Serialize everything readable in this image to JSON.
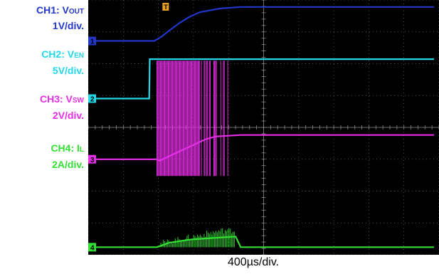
{
  "chart_data": {
    "type": "line",
    "title": "",
    "x_scale": "400µs/div.",
    "channels": [
      {
        "name": "CH1: VOUT",
        "label_main": "CH1: V",
        "label_sub": "OUT",
        "scale": "1V/div.",
        "color": "#2236c8",
        "marker": "1",
        "x": [
          0,
          1.3,
          1.45,
          1.6,
          1.8,
          2.0,
          2.2,
          2.6,
          3.0,
          4.0,
          5.0,
          6.8
        ],
        "y": [
          2.85,
          2.85,
          3.0,
          3.2,
          3.45,
          3.65,
          3.8,
          3.92,
          3.97,
          3.97,
          3.97,
          3.97
        ]
      },
      {
        "name": "CH2: VEN",
        "label_main": "CH2: V",
        "label_sub": "EN",
        "scale": "5V/div.",
        "color": "#22d8e8",
        "marker": "2",
        "x": [
          0,
          1.2,
          1.21,
          6.8
        ],
        "y": [
          0.95,
          0.95,
          2.25,
          2.25
        ]
      },
      {
        "name": "CH3: VSW",
        "label_main": "CH3: V",
        "label_sub": "SW",
        "scale": "2V/div.",
        "color": "#e62ee6",
        "marker": "3",
        "x": [
          0,
          1.35,
          1.4,
          2.3,
          2.5,
          3.0,
          3.2,
          6.8
        ],
        "y": [
          -1.05,
          -1.05,
          -1.1,
          -0.4,
          -0.3,
          -0.25,
          -0.25,
          -0.25
        ],
        "switching_region": [
          1.35,
          2.9
        ]
      },
      {
        "name": "CH4: IL",
        "label_main": "CH4: I",
        "label_sub": "L",
        "scale": "2A/div.",
        "color": "#33e033",
        "marker": "4",
        "x": [
          0,
          1.35,
          1.6,
          2.0,
          2.4,
          2.9,
          3.0,
          6.8
        ],
        "y": [
          -3.95,
          -3.95,
          -3.8,
          -3.7,
          -3.65,
          -3.6,
          -3.95,
          -3.95
        ],
        "switching_region": [
          1.35,
          2.9
        ]
      }
    ],
    "xlim": [
      -3.1,
      3.8
    ],
    "ylim": [
      -4.2,
      4.2
    ],
    "grid": true,
    "trigger_marker": "T"
  }
}
